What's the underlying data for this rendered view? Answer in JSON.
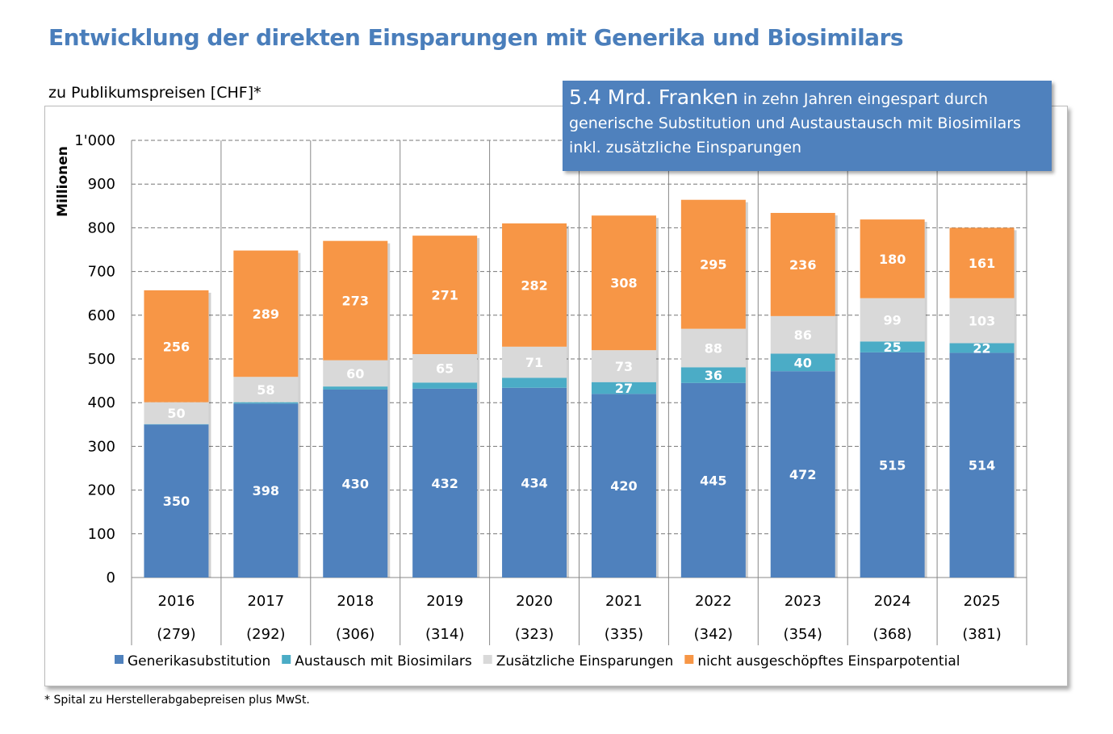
{
  "title": "Entwicklung der direkten Einsparungen mit Generika und Biosimilars",
  "subtitle": "zu Publikumspreisen [CHF]*",
  "callout": {
    "highlight": "5.4 Mrd. Franken",
    "text": " in zehn Jahren eingespart durch generische Substitution und Austaustausch mit Biosimilars inkl. zusätzliche Einsparungen"
  },
  "footnote": "* Spital zu Herstellerabgabepreisen plus MwSt.",
  "chart_data": {
    "type": "bar",
    "stacked": true,
    "ylabel": "Millionen",
    "ylim": [
      0,
      1000
    ],
    "yticks": [
      "0",
      "100",
      "200",
      "300",
      "400",
      "500",
      "600",
      "700",
      "800",
      "900",
      "1'000"
    ],
    "grid": true,
    "legend_placement": "bottom",
    "categories": [
      "2016",
      "2017",
      "2018",
      "2019",
      "2020",
      "2021",
      "2022",
      "2023",
      "2024",
      "2025"
    ],
    "category_sublabels": [
      "(279)",
      "(292)",
      "(306)",
      "(314)",
      "(323)",
      "(335)",
      "(342)",
      "(354)",
      "(368)",
      "(381)"
    ],
    "series": [
      {
        "name": "Generikasubstitution",
        "color": "#4f81bd",
        "values": [
          350,
          398,
          430,
          432,
          434,
          420,
          445,
          472,
          515,
          514
        ],
        "labeled": [
          true,
          true,
          true,
          true,
          true,
          true,
          true,
          true,
          true,
          true
        ]
      },
      {
        "name": "Austausch mit Biosimilars",
        "color": "#4bacc6",
        "values": [
          1,
          3,
          7,
          14,
          23,
          27,
          36,
          40,
          25,
          22
        ],
        "labeled": [
          false,
          false,
          false,
          false,
          false,
          true,
          true,
          true,
          true,
          true
        ]
      },
      {
        "name": "Zusätzliche Einsparungen",
        "color": "#d9d9d9",
        "values": [
          50,
          58,
          60,
          65,
          71,
          73,
          88,
          86,
          99,
          103
        ],
        "labeled": [
          true,
          true,
          true,
          true,
          true,
          true,
          true,
          true,
          true,
          true
        ]
      },
      {
        "name": "nicht ausgeschöpftes Einsparpotential",
        "color": "#f79646",
        "values": [
          256,
          289,
          273,
          271,
          282,
          308,
          295,
          236,
          180,
          161
        ],
        "labeled": [
          true,
          true,
          true,
          true,
          true,
          true,
          true,
          true,
          true,
          true
        ]
      }
    ]
  }
}
